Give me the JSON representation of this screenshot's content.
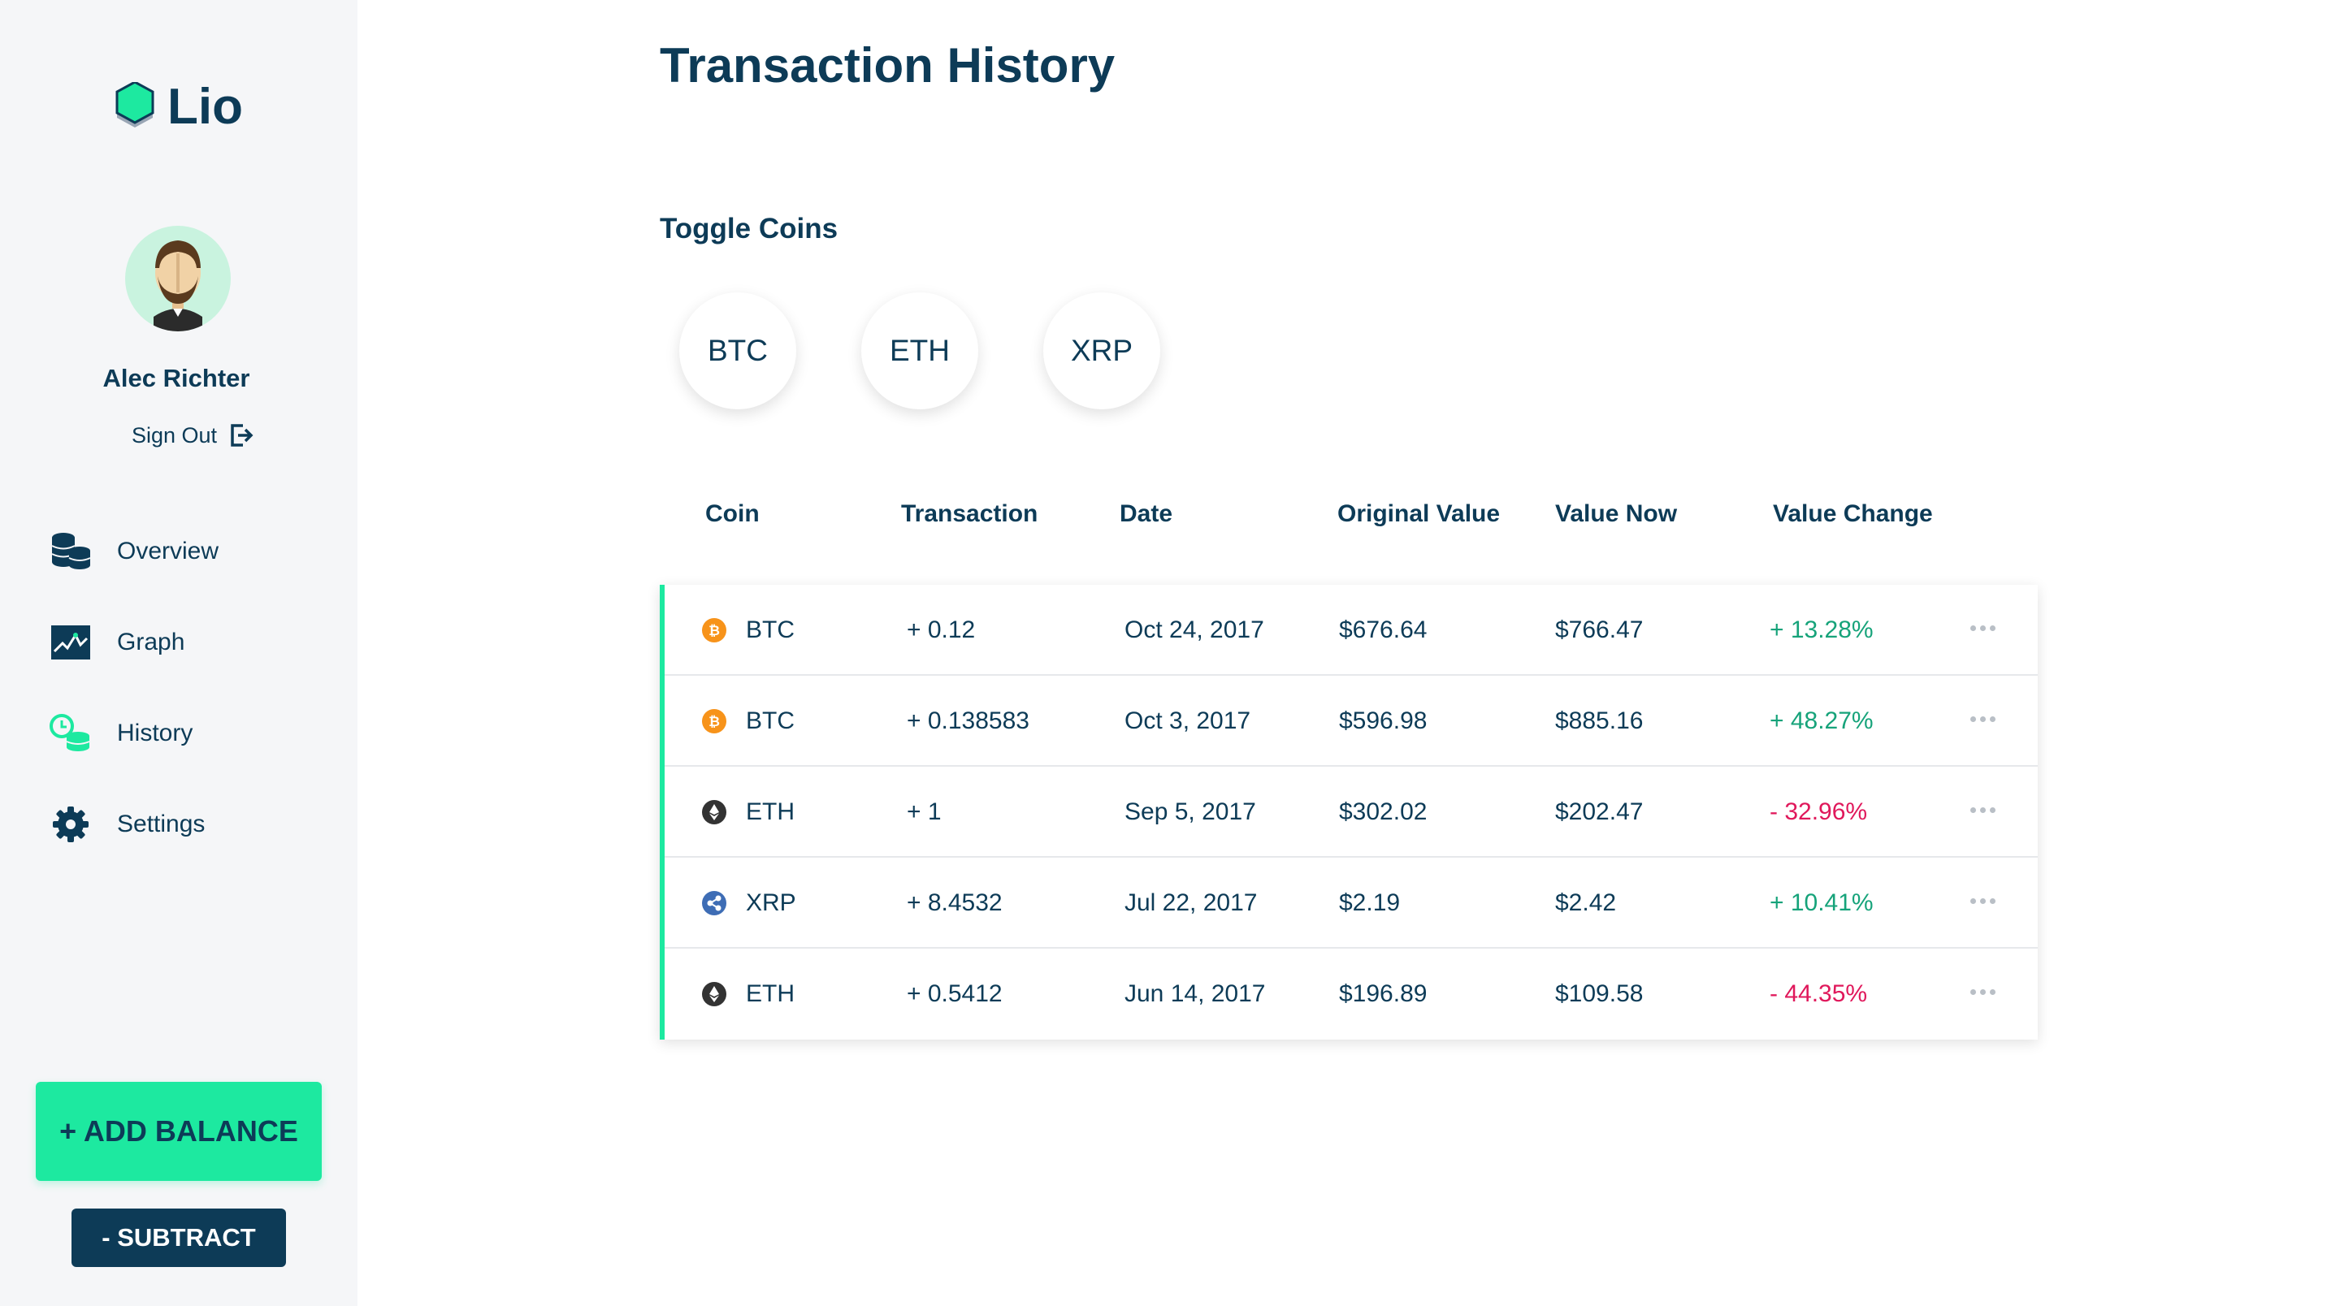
{
  "app": {
    "name": "Lio"
  },
  "user": {
    "name": "Alec Richter",
    "sign_out": "Sign Out"
  },
  "nav": [
    {
      "label": "Overview",
      "icon": "coins-stack-icon"
    },
    {
      "label": "Graph",
      "icon": "chart-icon"
    },
    {
      "label": "History",
      "icon": "history-coins-icon"
    },
    {
      "label": "Settings",
      "icon": "gear-icon"
    }
  ],
  "buttons": {
    "add_balance": "+ ADD BALANCE",
    "subtract": "- SUBTRACT"
  },
  "page": {
    "title": "Transaction History",
    "toggle_title": "Toggle Coins"
  },
  "toggles": [
    "BTC",
    "ETH",
    "XRP"
  ],
  "table": {
    "headers": [
      "Coin",
      "Transaction",
      "Date",
      "Original Value",
      "Value Now",
      "Value Change"
    ],
    "rows": [
      {
        "coin": "BTC",
        "transaction": "+ 0.12",
        "date": "Oct 24, 2017",
        "original": "$676.64",
        "now": "$766.47",
        "change": "+ 13.28%"
      },
      {
        "coin": "BTC",
        "transaction": "+ 0.138583",
        "date": "Oct 3, 2017",
        "original": "$596.98",
        "now": "$885.16",
        "change": "+ 48.27%"
      },
      {
        "coin": "ETH",
        "transaction": "+ 1",
        "date": "Sep 5, 2017",
        "original": "$302.02",
        "now": "$202.47",
        "change": "- 32.96%"
      },
      {
        "coin": "XRP",
        "transaction": "+ 8.4532",
        "date": "Jul 22, 2017",
        "original": "$2.19",
        "now": "$2.42",
        "change": "+ 10.41%"
      },
      {
        "coin": "ETH",
        "transaction": "+ 0.5412",
        "date": "Jun 14, 2017",
        "original": "$196.89",
        "now": "$109.58",
        "change": "- 44.35%"
      }
    ]
  },
  "colors": {
    "accent": "#1de9a0",
    "navy": "#0d3b57",
    "positive": "#16a37a",
    "negative": "#e0185b",
    "btc": "#f7931a",
    "eth": "#333333",
    "xrp": "#3e6db5"
  }
}
